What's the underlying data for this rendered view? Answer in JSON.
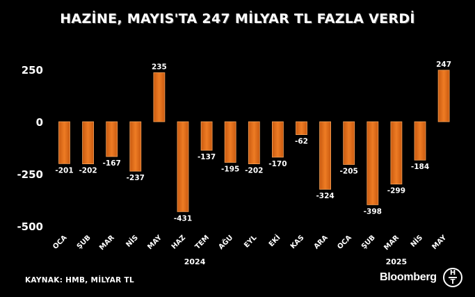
{
  "title": "HAZİNE, MAYIS'TA 247 MİLYAR TL FAZLA VERDİ",
  "source": "KAYNAK: HMB, MİLYAR TL",
  "brand": "Bloomberg",
  "logo_letters": [
    "H",
    "T"
  ],
  "colors": {
    "bar_fill": "#E2711D",
    "bar_edge": "#F7A45A",
    "background": "#000000",
    "text": "#FFFFFF"
  },
  "chart_data": {
    "type": "bar",
    "categories": [
      "OCA",
      "ŞUB",
      "MAR",
      "NİS",
      "MAY",
      "HAZ",
      "TEM",
      "AĞU",
      "EYL",
      "EKİ",
      "KAS",
      "ARA",
      "OCA",
      "ŞUB",
      "MAR",
      "NİS",
      "MAY"
    ],
    "values": [
      -201,
      -202,
      -167,
      -237,
      235,
      -431,
      -137,
      -195,
      -202,
      -170,
      -62,
      -324,
      -205,
      -398,
      -299,
      -184,
      247
    ],
    "year_labels": [
      {
        "label": "2024",
        "start_index": 0,
        "end_index": 11
      },
      {
        "label": "2025",
        "start_index": 12,
        "end_index": 16
      }
    ],
    "yticks": [
      250,
      0,
      -250,
      -500
    ],
    "ylim": [
      -500,
      250
    ],
    "grid": false,
    "title": "HAZİNE, MAYIS'TA 247 MİLYAR TL FAZLA VERDİ",
    "xlabel": "",
    "ylabel": ""
  }
}
